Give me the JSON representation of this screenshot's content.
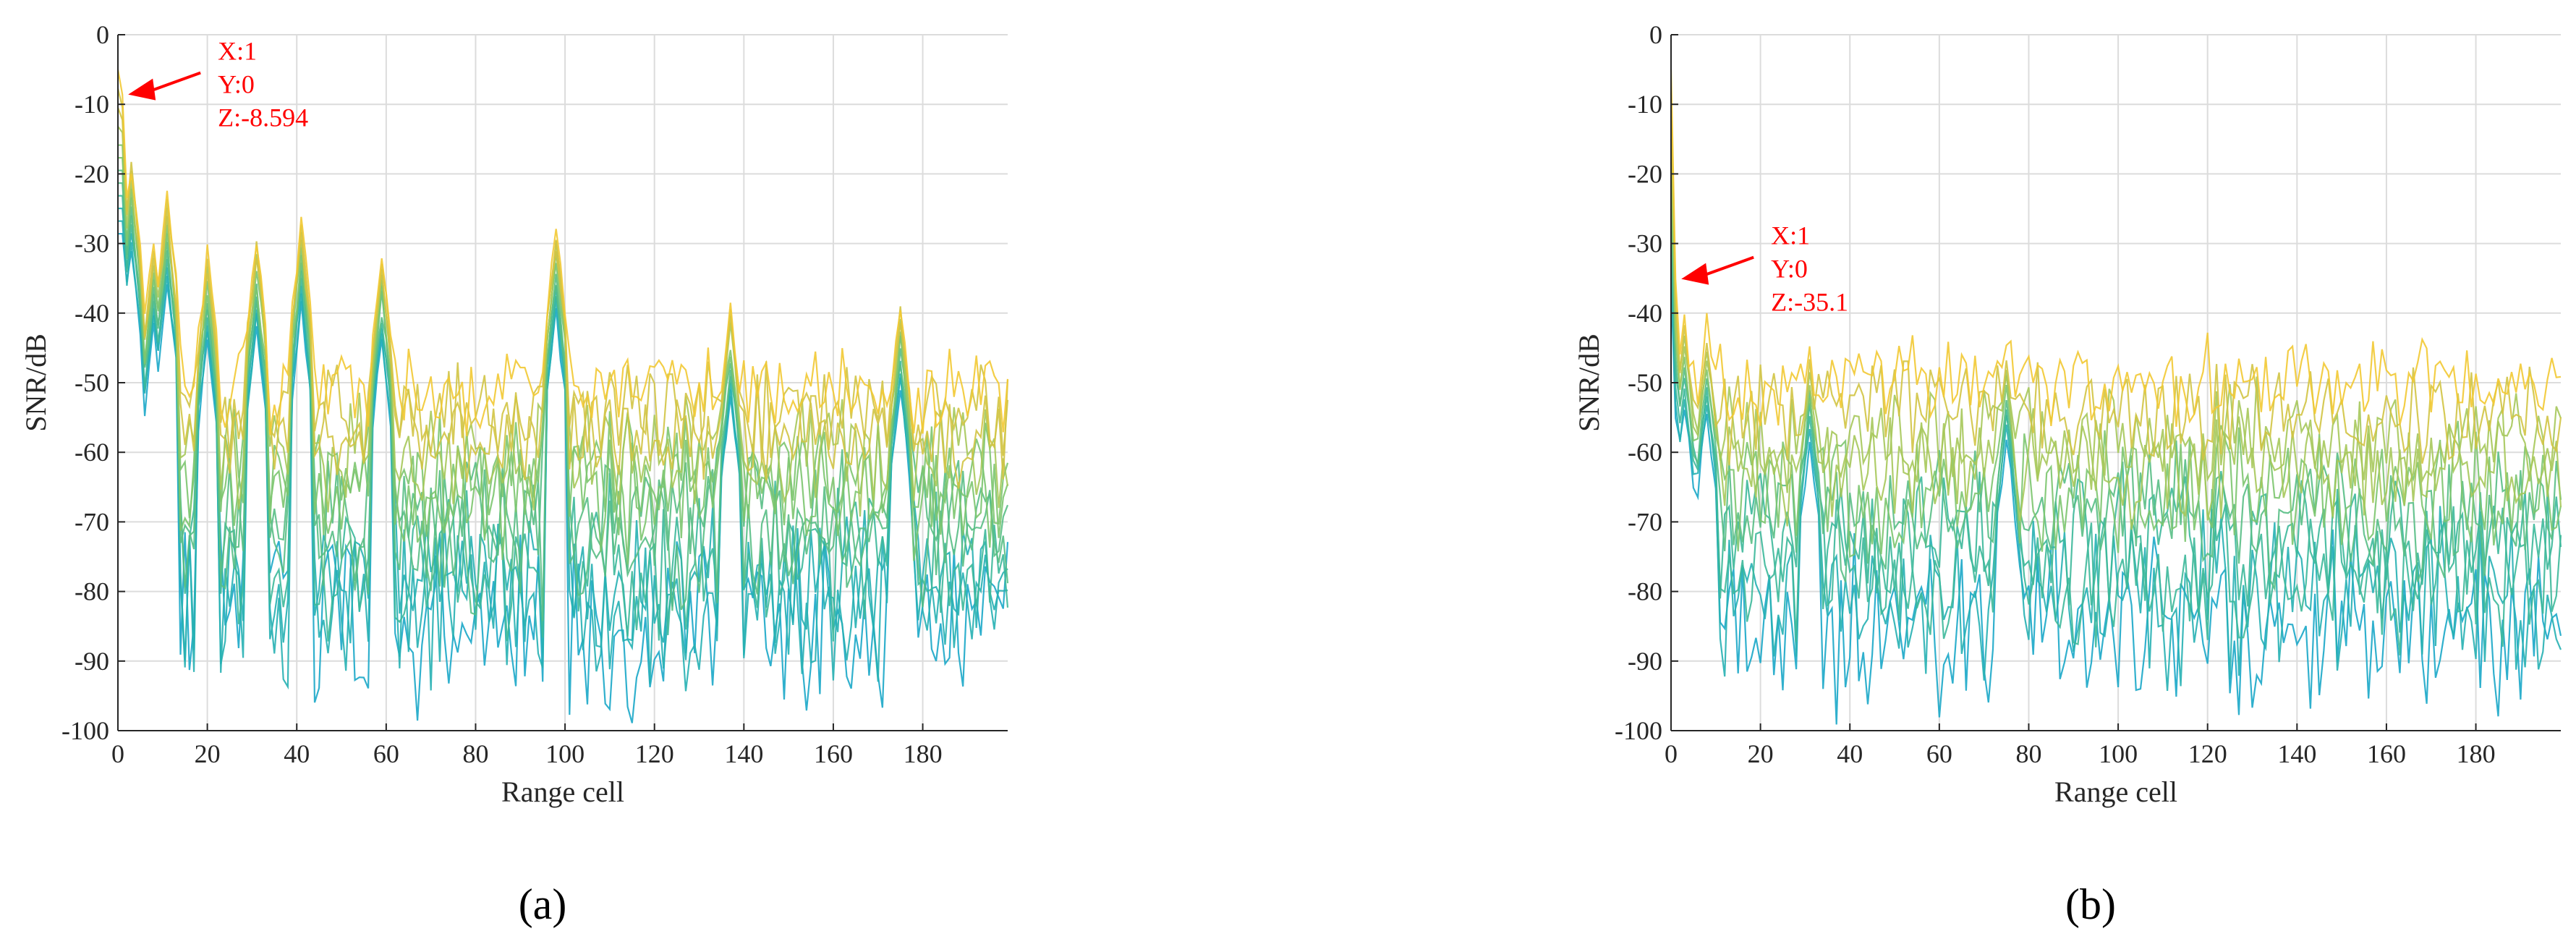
{
  "chart_data": [
    {
      "id": "a",
      "type": "line",
      "panel_label": "(a)",
      "xlabel": "Range cell",
      "ylabel": "SNR/dB",
      "xlim": [
        0,
        199
      ],
      "ylim": [
        -100,
        0
      ],
      "xticks": [
        0,
        20,
        40,
        60,
        80,
        100,
        120,
        140,
        160,
        180
      ],
      "yticks": [
        0,
        -10,
        -20,
        -30,
        -40,
        -50,
        -60,
        -70,
        -80,
        -90,
        -100
      ],
      "grid": true,
      "series_count": 12,
      "noise_floor_range": [
        -100,
        -45
      ],
      "peak_x": [
        3,
        8,
        11,
        20,
        31,
        41,
        59,
        98,
        137,
        175
      ],
      "peak_y": [
        -17,
        -28,
        -22,
        -30,
        -28,
        -25.5,
        -30,
        -26,
        -38,
        -37
      ],
      "colors": [
        "#1aa7c8",
        "#26b0b3",
        "#3cb89a",
        "#58be85",
        "#7cc56f",
        "#a6c85a",
        "#d1c444",
        "#f2c933"
      ],
      "annotation": {
        "x": 1,
        "y": -8.594,
        "lines": [
          "X:1",
          "Y:0",
          "Z:-8.594"
        ]
      }
    },
    {
      "id": "b",
      "type": "line",
      "panel_label": "(b)",
      "xlabel": "Range cell",
      "ylabel": "SNR/dB",
      "xlim": [
        0,
        199
      ],
      "ylim": [
        -100,
        0
      ],
      "xticks": [
        0,
        20,
        40,
        60,
        80,
        100,
        120,
        140,
        160,
        180
      ],
      "yticks": [
        0,
        -10,
        -20,
        -30,
        -40,
        -50,
        -60,
        -70,
        -80,
        -90,
        -100
      ],
      "grid": true,
      "series_count": 10,
      "noise_floor_range": [
        -100,
        -44
      ],
      "peak_x": [
        3,
        8,
        31,
        75
      ],
      "peak_y": [
        -39,
        -40,
        -44,
        -44
      ],
      "colors": [
        "#1aa7c8",
        "#26b0b3",
        "#3cb89a",
        "#58be85",
        "#7cc56f",
        "#a6c85a",
        "#d1c444",
        "#f2c933"
      ],
      "annotation": {
        "x": 1,
        "y": -35.1,
        "lines": [
          "X:1",
          "Y:0",
          "Z:-35.1"
        ]
      }
    }
  ]
}
